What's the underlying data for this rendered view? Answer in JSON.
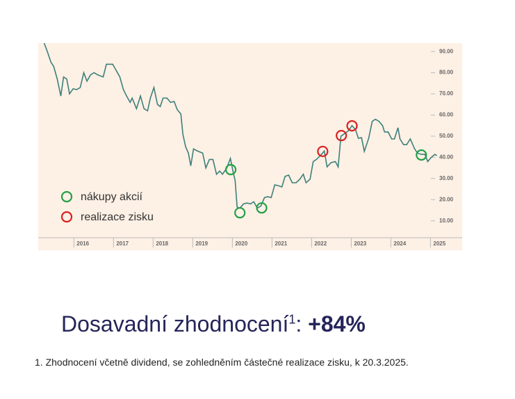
{
  "chart_data": {
    "type": "line",
    "line": {
      "color": "#3d7f7a",
      "x": [
        2015.25,
        2015.33,
        2015.42,
        2015.49,
        2015.58,
        2015.67,
        2015.74,
        2015.82,
        2015.89,
        2015.98,
        2016.07,
        2016.16,
        2016.25,
        2016.33,
        2016.42,
        2016.51,
        2016.6,
        2016.74,
        2016.82,
        2016.98,
        2017.04,
        2017.16,
        2017.25,
        2017.33,
        2017.42,
        2017.47,
        2017.58,
        2017.68,
        2017.77,
        2017.86,
        2017.93,
        2018.02,
        2018.11,
        2018.18,
        2018.25,
        2018.35,
        2018.44,
        2018.53,
        2018.61,
        2018.7,
        2018.75,
        2018.82,
        2018.89,
        2018.95,
        2019.02,
        2019.12,
        2019.25,
        2019.33,
        2019.42,
        2019.51,
        2019.6,
        2019.68,
        2019.75,
        2019.86,
        2019.95,
        2020.02,
        2020.07,
        2020.12,
        2020.19,
        2020.28,
        2020.37,
        2020.46,
        2020.54,
        2020.63,
        2020.72,
        2020.81,
        2020.89,
        2020.98,
        2021.07,
        2021.16,
        2021.25,
        2021.33,
        2021.42,
        2021.51,
        2021.61,
        2021.7,
        2021.79,
        2021.86,
        2021.96,
        2022.04,
        2022.12,
        2022.23,
        2022.32,
        2022.39,
        2022.49,
        2022.6,
        2022.67,
        2022.74,
        2022.84,
        2022.93,
        2023.02,
        2023.11,
        2023.18,
        2023.26,
        2023.33,
        2023.44,
        2023.53,
        2023.61,
        2023.7,
        2023.79,
        2023.84,
        2023.93,
        2024.02,
        2024.09,
        2024.18,
        2024.23,
        2024.32,
        2024.4,
        2024.49,
        2024.6,
        2024.67,
        2024.77,
        2024.86,
        2024.93,
        2025.02,
        2025.11,
        2025.16
      ],
      "values": [
        94,
        90,
        85,
        83,
        77,
        69,
        78,
        77,
        70,
        72.4,
        72,
        73,
        80,
        76,
        79,
        80,
        79,
        78,
        84,
        84,
        82,
        78,
        72,
        69,
        66,
        68,
        63,
        69,
        63,
        62,
        68,
        73,
        65,
        64,
        68,
        68,
        66,
        66.4,
        62.5,
        60.5,
        51,
        45,
        42,
        36,
        44,
        43,
        42,
        35,
        39,
        39,
        32,
        33.5,
        32,
        35,
        39.5,
        33,
        29,
        16.5,
        16,
        18,
        18.4,
        18,
        19,
        16,
        17,
        21,
        21.4,
        21,
        27,
        26.6,
        26,
        31,
        31.6,
        28,
        28,
        29.6,
        32,
        28,
        29.6,
        38,
        39,
        41,
        43,
        35.5,
        37.5,
        38,
        35.5,
        50,
        51.3,
        52.6,
        55,
        53,
        49,
        49.3,
        42.8,
        49,
        57,
        58,
        57,
        55,
        52,
        52,
        48.7,
        48.7,
        54,
        48.7,
        46,
        46,
        48.7,
        44,
        42,
        41.4,
        41.4,
        38,
        40,
        41.4,
        40.8
      ]
    },
    "series": [
      {
        "name": "nákupy akcií",
        "color": "#22a046",
        "x": [
          2019.96,
          2020.19,
          2020.74,
          2024.77
        ],
        "values": [
          34.2,
          13.8,
          16.1,
          41.1
        ]
      },
      {
        "name": "realizace zisku",
        "color": "#d92020",
        "x": [
          2022.28,
          2022.75,
          2023.02
        ],
        "values": [
          42.8,
          50.3,
          54.9
        ]
      }
    ],
    "xlim": [
      2015.1,
      2025.8
    ],
    "xticks": [
      2016,
      2017,
      2018,
      2019,
      2020,
      2021,
      2022,
      2023,
      2024,
      2025
    ],
    "ylim": [
      2,
      94
    ],
    "yticks": [
      {
        "value": 10,
        "label": "10.00"
      },
      {
        "value": 20,
        "label": "20.00"
      },
      {
        "value": 30,
        "label": "30.00"
      },
      {
        "value": 40,
        "label": "40.00"
      },
      {
        "value": 50,
        "label": "50.00"
      },
      {
        "value": 60,
        "label": "60.00"
      },
      {
        "value": 70,
        "label": "70.00"
      },
      {
        "value": 80,
        "label": "80.00"
      },
      {
        "value": 90,
        "label": "90.00"
      }
    ],
    "legend": "lower left",
    "background": "#fdf0e5"
  },
  "headline": {
    "text": "Dosavadní zhodnocení",
    "sup": "1",
    "separator": ":",
    "value": "+84%"
  },
  "footnote": "1. Zhodnocení včetně dividend, se zohledněním částečné realizace zisku, k 20.3.2025."
}
